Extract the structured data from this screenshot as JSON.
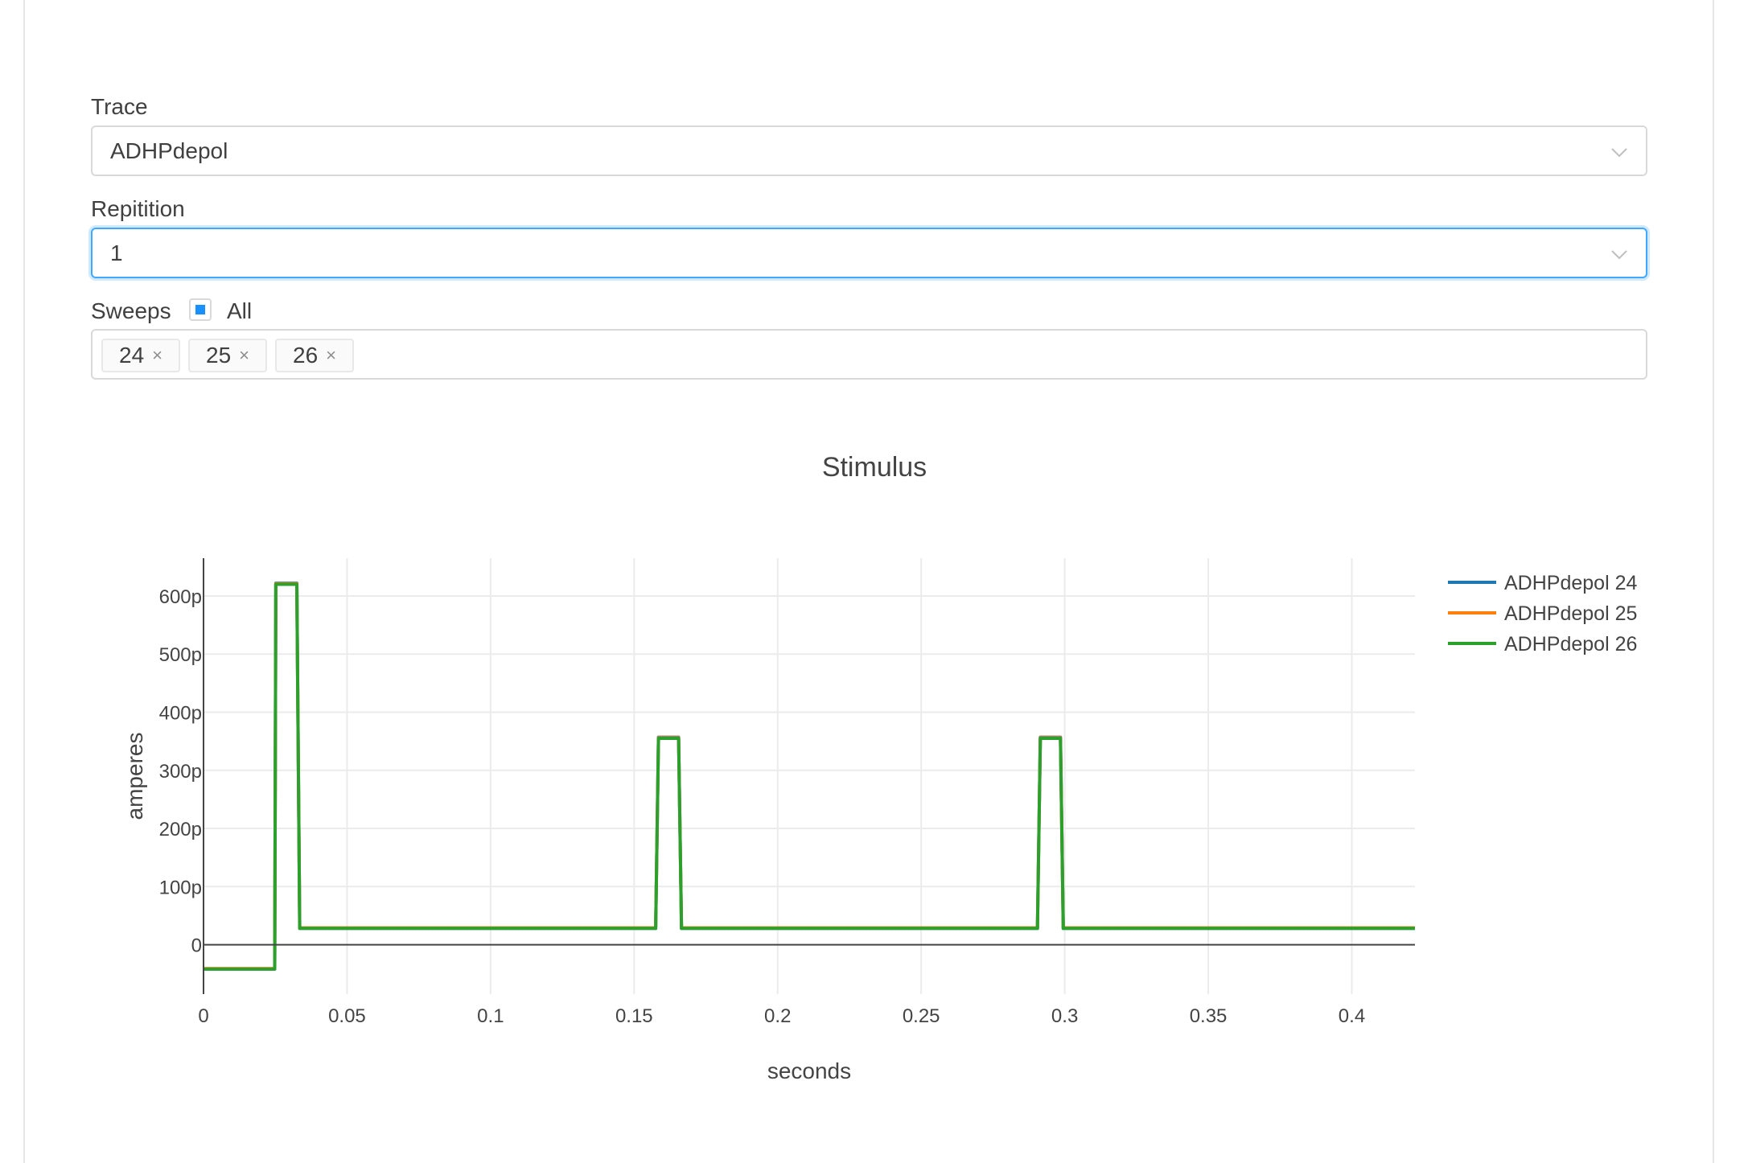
{
  "form": {
    "trace": {
      "label": "Trace",
      "value": "ADHPdepol"
    },
    "repetition": {
      "label": "Repitition",
      "value": "1"
    },
    "sweeps": {
      "label": "Sweeps",
      "all_label": "All",
      "all_checked": true,
      "tags": [
        "24",
        "25",
        "26"
      ],
      "remove_icon": "×"
    },
    "accent_color": "#1890ff"
  },
  "chart_data": {
    "type": "line",
    "title": "Stimulus",
    "xlabel": "seconds",
    "ylabel": "amperes",
    "xlim": [
      0,
      0.422
    ],
    "ylim": [
      -8.5e-11,
      6.65e-10
    ],
    "x_ticks": [
      0,
      0.05,
      0.1,
      0.15,
      0.2,
      0.25,
      0.3,
      0.35,
      0.4
    ],
    "x_tick_labels": [
      "0",
      "0.05",
      "0.1",
      "0.15",
      "0.2",
      "0.25",
      "0.3",
      "0.35",
      "0.4"
    ],
    "y_ticks": [
      0,
      1e-10,
      2e-10,
      3e-10,
      4e-10,
      5e-10,
      6e-10
    ],
    "y_tick_labels": [
      "0",
      "100p",
      "200p",
      "300p",
      "400p",
      "500p",
      "600p"
    ],
    "grid": true,
    "legend_position": "top-right",
    "series": [
      {
        "name": "ADHPdepol 24",
        "color": "#1f77b4",
        "x": [
          0,
          0.0248,
          0.0252,
          0.0325,
          0.0335,
          0.1575,
          0.1585,
          0.1655,
          0.1665,
          0.2905,
          0.2915,
          0.2985,
          0.2995,
          0.422
        ],
        "y": [
          -4.2e-11,
          -4.2e-11,
          6.22e-10,
          6.22e-10,
          2.8e-11,
          2.8e-11,
          3.57e-10,
          3.57e-10,
          2.8e-11,
          2.8e-11,
          3.57e-10,
          3.57e-10,
          2.8e-11,
          2.8e-11
        ]
      },
      {
        "name": "ADHPdepol 25",
        "color": "#ff7f0e",
        "x": [
          0,
          0.0248,
          0.0252,
          0.0325,
          0.0335,
          0.1575,
          0.1585,
          0.1655,
          0.1665,
          0.2905,
          0.2915,
          0.2985,
          0.2995,
          0.422
        ],
        "y": [
          -4.1e-11,
          -4.1e-11,
          6.21e-10,
          6.21e-10,
          2.9e-11,
          2.9e-11,
          3.56e-10,
          3.56e-10,
          2.9e-11,
          2.9e-11,
          3.56e-10,
          3.56e-10,
          2.9e-11,
          2.9e-11
        ]
      },
      {
        "name": "ADHPdepol 26",
        "color": "#2ca02c",
        "x": [
          0,
          0.0248,
          0.0252,
          0.0325,
          0.0335,
          0.1575,
          0.1585,
          0.1655,
          0.1665,
          0.2905,
          0.2915,
          0.2985,
          0.2995,
          0.422
        ],
        "y": [
          -4.2e-11,
          -4.2e-11,
          6.2e-10,
          6.2e-10,
          2.8e-11,
          2.8e-11,
          3.55e-10,
          3.55e-10,
          2.8e-11,
          2.8e-11,
          3.55e-10,
          3.55e-10,
          2.8e-11,
          2.8e-11
        ]
      }
    ]
  }
}
